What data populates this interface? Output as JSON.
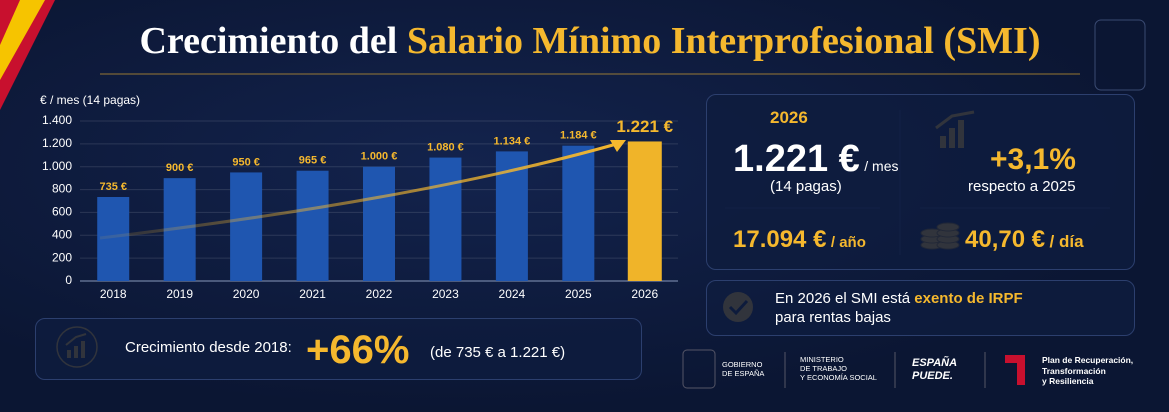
{
  "title": {
    "part1": "Crecimiento del",
    "part2": "Salario Mínimo Interprofesional (SMI)"
  },
  "chart_data": {
    "type": "bar",
    "y_label": "€ / mes (14 pagas)",
    "categories": [
      "2018",
      "2019",
      "2020",
      "2021",
      "2022",
      "2023",
      "2024",
      "2025",
      "2026"
    ],
    "values": [
      735,
      900,
      950,
      965,
      1000,
      1080,
      1134,
      1184,
      1221
    ],
    "value_labels": [
      "735 €",
      "900 €",
      "950 €",
      "965 €",
      "1.000 €",
      "1.080 €",
      "1.134 €",
      "1.184 €",
      "1.221 €"
    ],
    "colors": [
      "#1f56b0",
      "#1f56b0",
      "#1f56b0",
      "#1f56b0",
      "#1f56b0",
      "#1f56b0",
      "#1f56b0",
      "#1f56b0",
      "#f0b429"
    ],
    "ylim": [
      0,
      1400
    ],
    "yticks": [
      0,
      200,
      400,
      600,
      800,
      {
        "value": 1000,
        "label": "1.000"
      },
      {
        "value": 1200,
        "label": "1.200"
      },
      {
        "value": 1400,
        "label": "1.400"
      }
    ],
    "grid": true
  },
  "growth": {
    "label": "Crecimiento desde 2018:",
    "value": "+66%",
    "detail": "(de 735 € a 1.221 €)"
  },
  "stats": {
    "year": "2026",
    "monthly": "1.221 €",
    "monthly_unit": "/ mes",
    "monthly_note": "(14 pagas)",
    "increase": "+3,1%",
    "increase_note": "respecto a 2025",
    "annual": "17.094 €",
    "annual_unit": "/ año",
    "daily": "40,70 €",
    "daily_unit": "/ día"
  },
  "notice": {
    "text": "En 2026 el SMI está",
    "highlight": "exento de IRPF",
    "line2": "para rentas bajas"
  },
  "footer": {
    "gobierno": [
      "GOBIERNO",
      "DE ESPAÑA"
    ],
    "ministerio": [
      "MINISTERIO",
      "DE TRABAJO",
      "Y ECONOMÍA SOCIAL"
    ],
    "espana_puede": [
      "ESPAÑA",
      "PUEDE."
    ],
    "plan": [
      "Plan de Recuperación,",
      "Transformación",
      "y Resiliencia"
    ]
  }
}
